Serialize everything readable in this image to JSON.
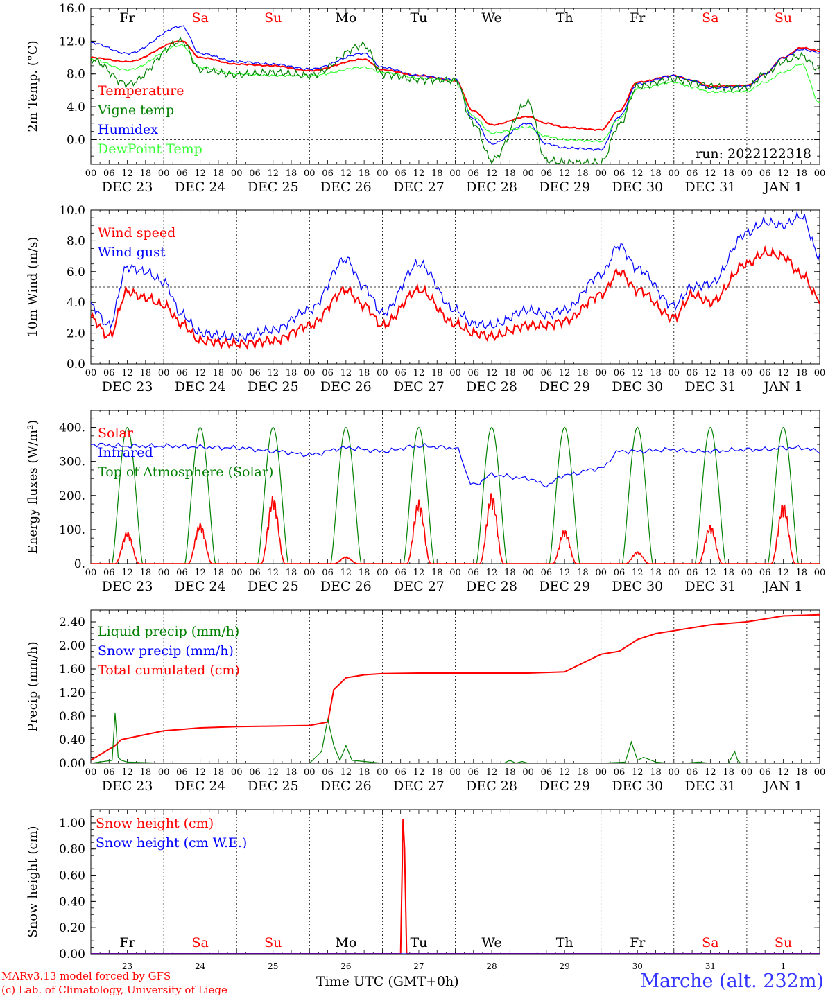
{
  "colors": {
    "red": "#ff0000",
    "green": "#008000",
    "blue": "#0000ff",
    "lightgreen": "#33ff33",
    "darkgreen": "#228b22",
    "weekend": "#ff0000",
    "weekday": "#000000",
    "station": "#3333ff"
  },
  "day_names": [
    "Fr",
    "Sa",
    "Su",
    "Mo",
    "Tu",
    "We",
    "Th",
    "Fr",
    "Sa",
    "Su"
  ],
  "weekend": [
    false,
    true,
    true,
    false,
    false,
    false,
    false,
    false,
    true,
    true
  ],
  "date_labels": [
    "DEC 23",
    "DEC 24",
    "DEC 25",
    "DEC 26",
    "DEC 27",
    "DEC 28",
    "DEC 29",
    "DEC 30",
    "DEC 31",
    "JAN  1"
  ],
  "day_numbers": [
    "23",
    "24",
    "25",
    "26",
    "27",
    "28",
    "29",
    "30",
    "31",
    "1"
  ],
  "hour_labels": [
    "00",
    "06",
    "12",
    "18"
  ],
  "run_label": "run: 2022122318",
  "footer": {
    "credit_line1": "MARv3.13 model forced by GFS",
    "credit_line2": "(c) Lab. of Climatology, University of Liege",
    "xaxis_title": "Time UTC (GMT+0h)",
    "station": "Marche (alt. 232m)"
  },
  "chart_data": [
    {
      "type": "line",
      "ylabel": "2m Temp. (°C)",
      "ylim": [
        -3,
        16
      ],
      "yticks": [
        "16.0",
        "12.0",
        "8.0",
        "4.0",
        "0.0"
      ],
      "ytick_values": [
        16,
        12,
        8,
        4,
        0
      ],
      "dashed_y": 0,
      "legend": [
        {
          "name": "Temperature",
          "color": "red"
        },
        {
          "name": "Vigne temp",
          "color": "green"
        },
        {
          "name": "Humidex",
          "color": "blue"
        },
        {
          "name": "DewPoint Temp",
          "color": "lightgreen"
        }
      ],
      "series": [
        {
          "name": "Temperature",
          "color": "red",
          "x": [
            0,
            12,
            30,
            36,
            48,
            60,
            72,
            90,
            96,
            108,
            120,
            126,
            132,
            144,
            150,
            156,
            168,
            174,
            180,
            192,
            198,
            204,
            216,
            222,
            228,
            234,
            240
          ],
          "y": [
            10,
            9.5,
            12,
            10,
            9.2,
            9,
            8.4,
            9.8,
            8.5,
            7.8,
            7.2,
            3.5,
            1.8,
            2.8,
            2.0,
            1.5,
            1.2,
            3.5,
            7.0,
            7.8,
            7.2,
            6.5,
            6.6,
            8.0,
            10.0,
            11.2,
            10.8
          ]
        },
        {
          "name": "Humidex",
          "color": "blue",
          "x": [
            0,
            12,
            30,
            36,
            48,
            60,
            72,
            90,
            96,
            108,
            120,
            126,
            132,
            144,
            150,
            156,
            168,
            174,
            180,
            192,
            198,
            204,
            216,
            222,
            228,
            234,
            240
          ],
          "y": [
            11.8,
            10.5,
            13.8,
            10.5,
            9.5,
            9.2,
            8.6,
            10.5,
            8.8,
            7.8,
            7.3,
            2.5,
            -0.5,
            2.0,
            -0.5,
            -1.0,
            -1.2,
            2.8,
            6.8,
            7.8,
            7.2,
            6.3,
            6.5,
            8.0,
            10.0,
            11.0,
            10.6
          ]
        },
        {
          "name": "DewPoint Temp",
          "color": "lightgreen",
          "x": [
            0,
            12,
            30,
            36,
            48,
            60,
            72,
            90,
            96,
            108,
            120,
            126,
            132,
            144,
            150,
            156,
            168,
            174,
            180,
            192,
            198,
            204,
            216,
            222,
            228,
            234,
            240
          ],
          "y": [
            9.8,
            8.5,
            11.5,
            8.8,
            8.0,
            7.8,
            7.8,
            8.8,
            8.2,
            7.5,
            7.2,
            2.8,
            0.8,
            1.5,
            0.4,
            0.0,
            -0.2,
            2.5,
            6.2,
            7.0,
            6.4,
            5.8,
            5.9,
            7.0,
            8.2,
            9.2,
            4.5
          ]
        },
        {
          "name": "Vigne temp",
          "color": "green",
          "x": [
            0,
            12,
            30,
            36,
            48,
            60,
            72,
            90,
            96,
            108,
            120,
            126,
            132,
            144,
            150,
            156,
            168,
            174,
            180,
            192,
            198,
            204,
            216,
            222,
            228,
            234,
            240
          ],
          "y": [
            9.8,
            6.8,
            12.0,
            8.5,
            7.9,
            8.2,
            7.8,
            11.5,
            8.0,
            7.3,
            7.2,
            2.0,
            -2.5,
            4.5,
            -2.5,
            -2.8,
            -2.8,
            1.8,
            6.5,
            7.4,
            7.0,
            6.5,
            6.3,
            8.0,
            9.5,
            10.2,
            8.5
          ]
        }
      ]
    },
    {
      "type": "line",
      "ylabel": "10m Wind (m/s)",
      "ylim": [
        0,
        10
      ],
      "yticks": [
        "10.0",
        "8.0",
        "6.0",
        "4.0",
        "2.0",
        "0.0"
      ],
      "ytick_values": [
        10,
        8,
        6,
        4,
        2,
        0
      ],
      "dashed_y": 5,
      "legend": [
        {
          "name": "Wind speed",
          "color": "red"
        },
        {
          "name": "Wind gust",
          "color": "blue"
        }
      ],
      "series": [
        {
          "name": "Wind speed",
          "color": "red",
          "x": [
            0,
            6,
            12,
            18,
            24,
            30,
            36,
            48,
            60,
            72,
            84,
            90,
            96,
            108,
            120,
            126,
            132,
            144,
            150,
            156,
            168,
            174,
            180,
            192,
            198,
            204,
            216,
            222,
            228,
            234,
            240
          ],
          "y": [
            3.0,
            1.8,
            4.7,
            4.3,
            3.8,
            2.6,
            1.5,
            1.3,
            1.5,
            2.5,
            4.8,
            3.8,
            2.5,
            4.8,
            2.6,
            2.0,
            1.8,
            2.5,
            2.5,
            2.8,
            4.5,
            6.0,
            4.8,
            3.0,
            4.5,
            4.0,
            6.5,
            7.2,
            7.0,
            5.8,
            4.2
          ]
        },
        {
          "name": "Wind gust",
          "color": "blue",
          "x": [
            0,
            6,
            12,
            18,
            24,
            30,
            36,
            48,
            60,
            72,
            84,
            90,
            96,
            108,
            120,
            126,
            132,
            144,
            150,
            156,
            168,
            174,
            180,
            192,
            198,
            204,
            216,
            222,
            228,
            234,
            240
          ],
          "y": [
            3.8,
            2.5,
            6.3,
            6.0,
            5.3,
            3.2,
            2.0,
            1.7,
            2.2,
            3.5,
            6.8,
            5.0,
            3.3,
            6.5,
            3.5,
            2.6,
            2.5,
            3.5,
            3.2,
            3.5,
            5.8,
            7.7,
            6.2,
            3.8,
            5.0,
            5.2,
            8.5,
            9.2,
            9.0,
            9.6,
            7.0
          ]
        }
      ]
    },
    {
      "type": "line",
      "ylabel": "Energy fluxes (W/m²)",
      "ylim": [
        0,
        450
      ],
      "yticks": [
        "400.",
        "300.",
        "200.",
        "100.",
        "0."
      ],
      "ytick_values": [
        400,
        300,
        200,
        100,
        0
      ],
      "legend": [
        {
          "name": "Solar",
          "color": "red"
        },
        {
          "name": "Infrared",
          "color": "blue"
        },
        {
          "name": "Top of Atmosphere (Solar)",
          "color": "green"
        }
      ],
      "toa_daily_peak": 400,
      "solar_daily_peaks": [
        95,
        120,
        200,
        20,
        190,
        210,
        100,
        35,
        115,
        180
      ],
      "series": [
        {
          "name": "Infrared",
          "color": "blue",
          "x": [
            0,
            12,
            24,
            48,
            60,
            72,
            84,
            96,
            108,
            120,
            126,
            132,
            144,
            150,
            156,
            168,
            174,
            180,
            192,
            198,
            204,
            216,
            222,
            228,
            234,
            240
          ],
          "y": [
            350,
            345,
            345,
            340,
            330,
            320,
            340,
            330,
            345,
            340,
            230,
            260,
            250,
            230,
            260,
            280,
            330,
            330,
            335,
            330,
            330,
            335,
            335,
            340,
            340,
            330
          ]
        }
      ]
    },
    {
      "type": "line",
      "ylabel": "Precip (mm/h)",
      "ylim": [
        0,
        2.6
      ],
      "yticks": [
        "2.40",
        "2.00",
        "1.60",
        "1.20",
        "0.80",
        "0.40",
        "0.00"
      ],
      "ytick_values": [
        2.4,
        2.0,
        1.6,
        1.2,
        0.8,
        0.4,
        0
      ],
      "legend": [
        {
          "name": "Liquid precip (mm/h)",
          "color": "green"
        },
        {
          "name": "Snow precip (mm/h)",
          "color": "blue"
        },
        {
          "name": "Total cumulated (cm)",
          "color": "red"
        }
      ],
      "series": [
        {
          "name": "Total cumulated (cm)",
          "color": "red",
          "x": [
            0,
            8,
            10,
            24,
            36,
            48,
            60,
            72,
            78,
            80,
            84,
            90,
            96,
            108,
            120,
            126,
            132,
            144,
            156,
            168,
            174,
            180,
            186,
            192,
            204,
            216,
            222,
            228,
            240
          ],
          "y": [
            0.05,
            0.3,
            0.4,
            0.55,
            0.6,
            0.62,
            0.63,
            0.64,
            0.7,
            1.25,
            1.45,
            1.5,
            1.52,
            1.53,
            1.53,
            1.53,
            1.53,
            1.53,
            1.55,
            1.85,
            1.9,
            2.1,
            2.2,
            2.25,
            2.35,
            2.4,
            2.45,
            2.5,
            2.52
          ]
        },
        {
          "name": "Liquid precip (mm/h)",
          "color": "green",
          "x": [
            0,
            7,
            8,
            9,
            10,
            12,
            24,
            72,
            76,
            78,
            80,
            82,
            84,
            86,
            96,
            136,
            138,
            140,
            142,
            144,
            168,
            176,
            178,
            180,
            182,
            186,
            190,
            196,
            200,
            204,
            210,
            212,
            213,
            214,
            216,
            240
          ],
          "y": [
            0,
            0.05,
            0.85,
            0.1,
            0.05,
            0.02,
            0,
            0,
            0.2,
            0.75,
            0.3,
            0.05,
            0.3,
            0.05,
            0,
            0,
            0.05,
            0,
            0.03,
            0,
            0,
            0.02,
            0.36,
            0.05,
            0.1,
            0.02,
            0,
            0,
            0.02,
            0,
            0,
            0.2,
            0.05,
            0,
            0,
            0
          ]
        }
      ]
    },
    {
      "type": "line",
      "ylabel": "Snow height (cm)",
      "ylim": [
        0,
        1.1
      ],
      "yticks": [
        "1.00",
        "0.80",
        "0.60",
        "0.40",
        "0.20",
        "0.00"
      ],
      "ytick_values": [
        1.0,
        0.8,
        0.6,
        0.4,
        0.2,
        0
      ],
      "legend": [
        {
          "name": "Snow height (cm)",
          "color": "red"
        },
        {
          "name": "Snow height (cm W.E.)",
          "color": "blue"
        }
      ],
      "series": [
        {
          "name": "Snow height (cm)",
          "color": "red",
          "x": [
            0,
            102,
            102.8,
            103.3,
            104,
            240
          ],
          "y": [
            0,
            0,
            1.03,
            0.8,
            0,
            0
          ]
        },
        {
          "name": "Snow height (cm W.E.)",
          "color": "blue",
          "x": [
            0,
            240
          ],
          "y": [
            0,
            0
          ]
        }
      ]
    }
  ]
}
